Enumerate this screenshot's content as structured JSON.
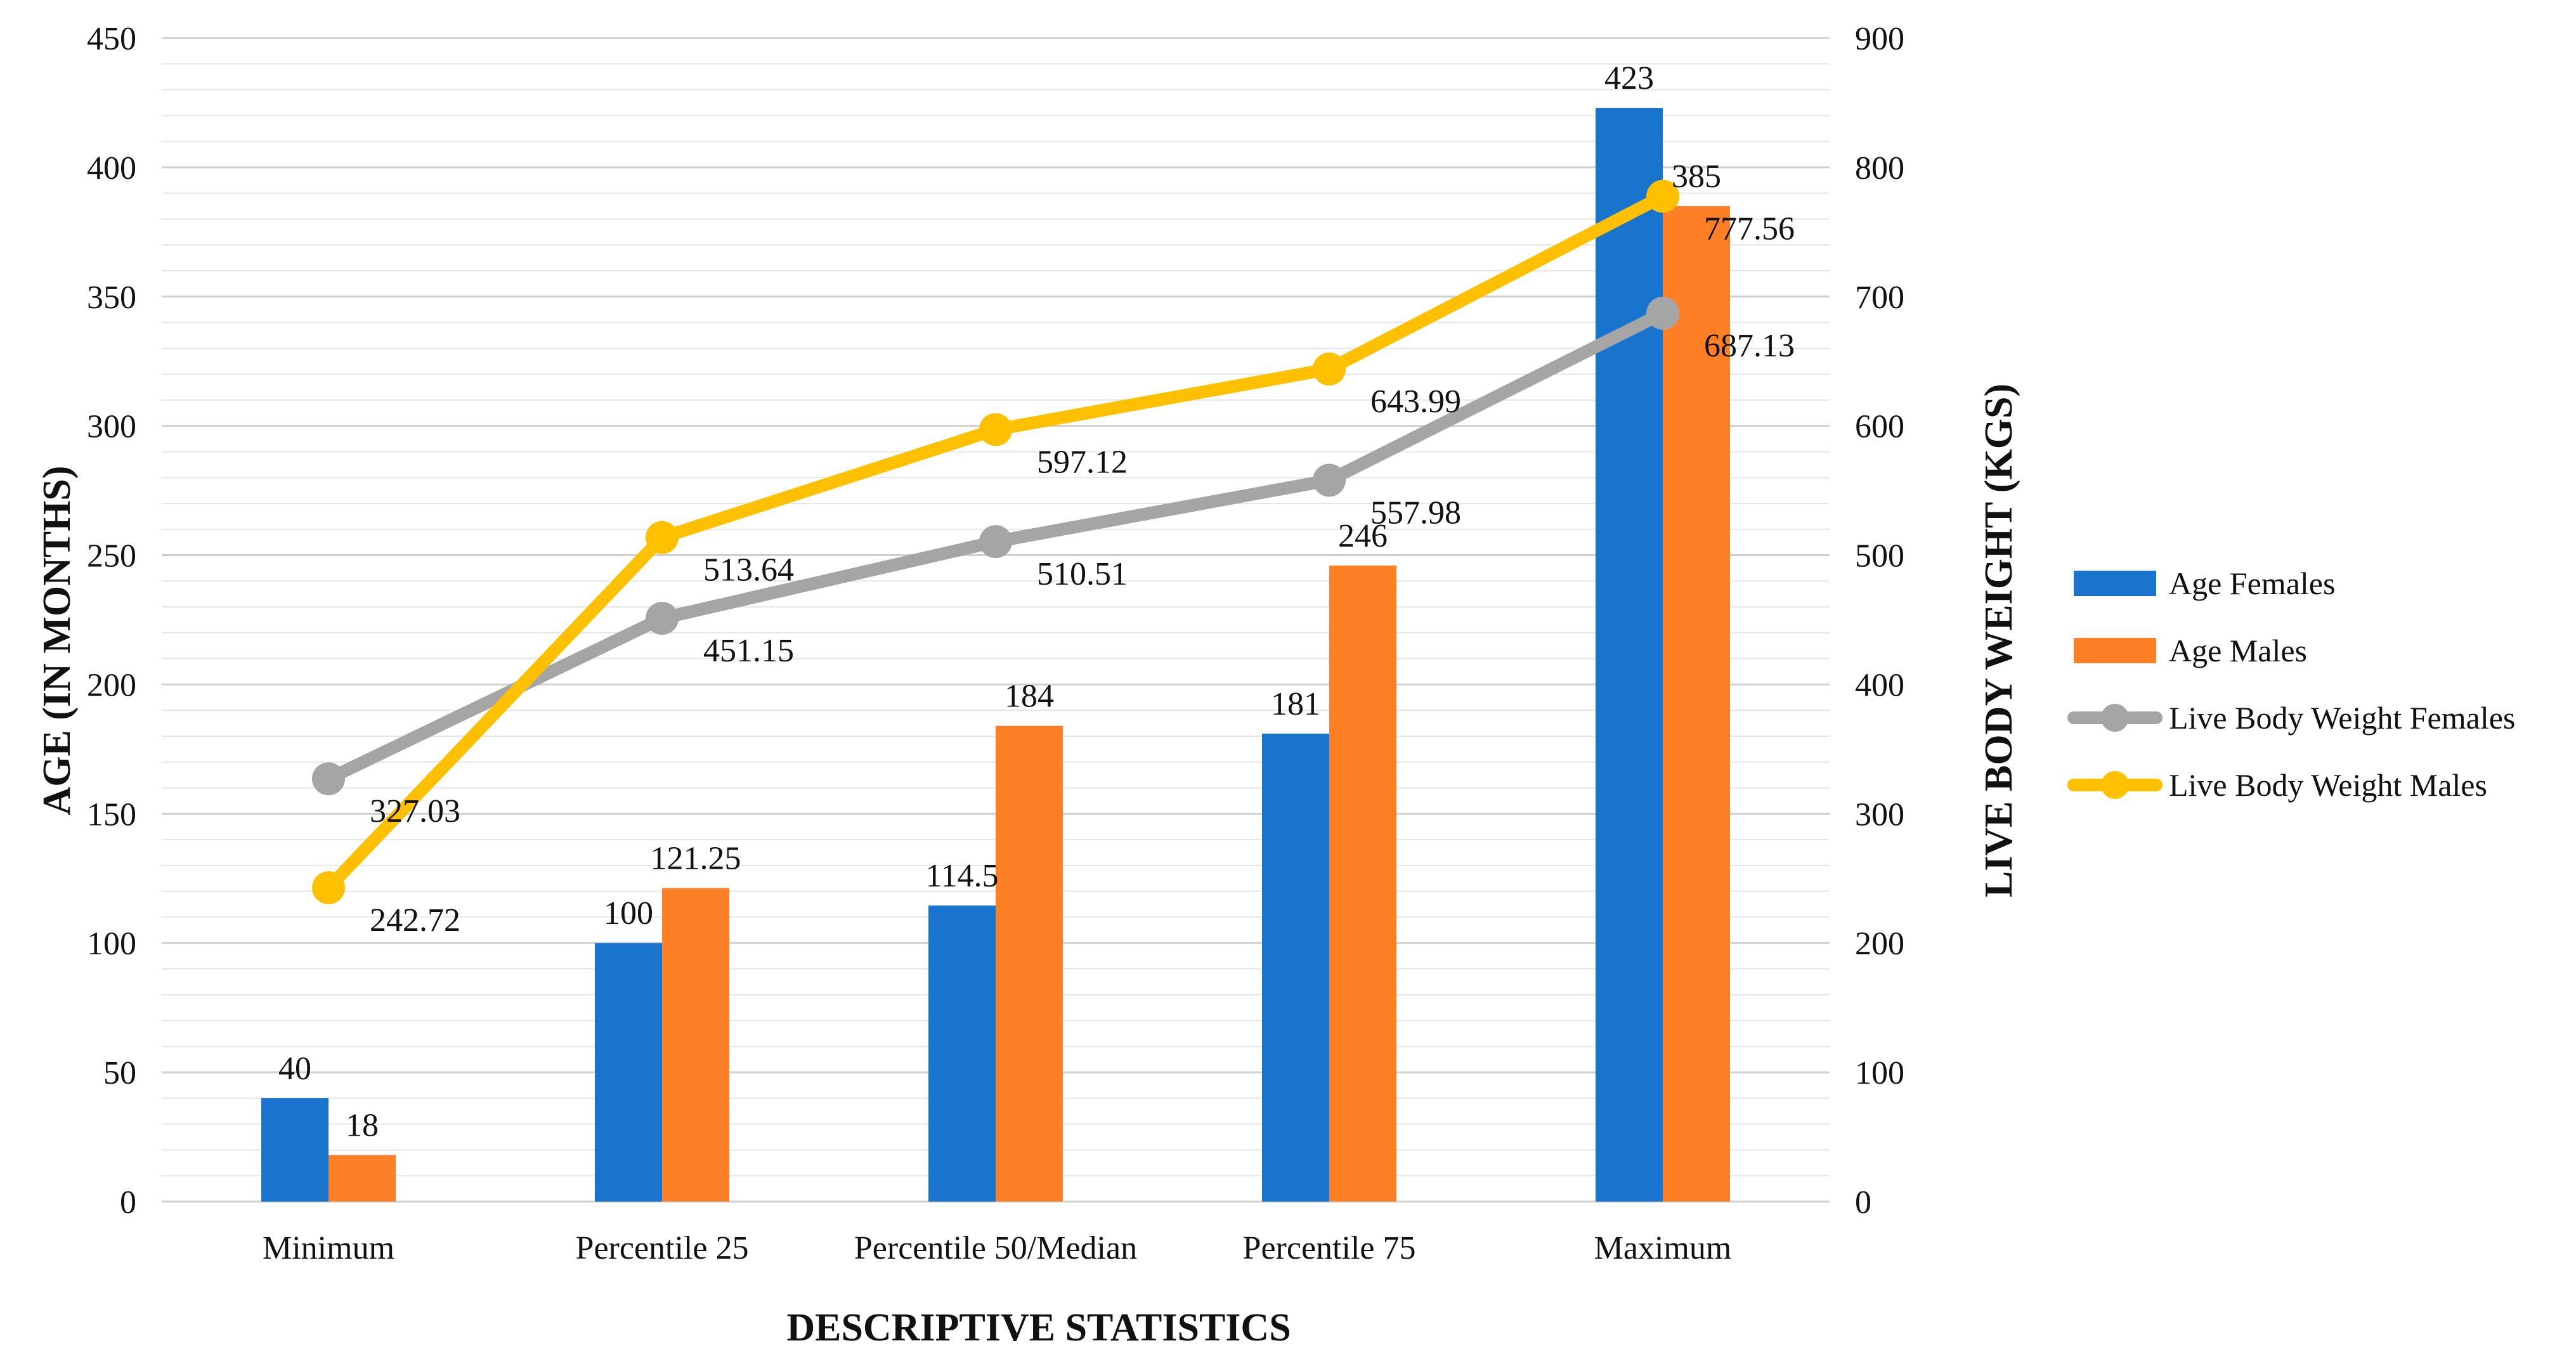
{
  "chart_data": {
    "type": "bar",
    "categories": [
      "Minimum",
      "Percentile 25",
      "Percentile 50/Median",
      "Percentile 75",
      "Maximum"
    ],
    "series": [
      {
        "name": "Age Females",
        "kind": "bar",
        "axis": "left",
        "color": "#1874CD",
        "values": [
          40,
          100,
          114.5,
          181,
          423
        ],
        "labels": [
          "40",
          "100",
          "114.5",
          "181",
          "423"
        ]
      },
      {
        "name": "Age Males",
        "kind": "bar",
        "axis": "left",
        "color": "#FF7F27",
        "values": [
          18,
          121.25,
          184,
          246,
          385
        ],
        "labels": [
          "18",
          "121.25",
          "184",
          "246",
          "385"
        ]
      },
      {
        "name": "Live Body Weight Females",
        "kind": "line",
        "axis": "right",
        "color": "#A5A5A5",
        "values": [
          327.03,
          451.15,
          510.51,
          557.98,
          687.13
        ],
        "labels": [
          "327.03",
          "451.15",
          "510.51",
          "557.98",
          "687.13"
        ]
      },
      {
        "name": "Live Body Weight Males",
        "kind": "line",
        "axis": "right",
        "color": "#FFC000",
        "values": [
          242.72,
          513.64,
          597.12,
          643.99,
          777.56
        ],
        "labels": [
          "242.72",
          "513.64",
          "597.12",
          "643.99",
          "777.56"
        ]
      }
    ],
    "xlabel": "DESCRIPTIVE STATISTICS",
    "ylabel": "AGE (IN MONTHS)",
    "y2label": "LIVE BODY WEIGHT (KGS)",
    "ylim": [
      0,
      450
    ],
    "yticks": [
      0,
      50,
      100,
      150,
      200,
      250,
      300,
      350,
      400,
      450
    ],
    "y2lim": [
      0,
      900
    ],
    "y2ticks": [
      0,
      100,
      200,
      300,
      400,
      500,
      600,
      700,
      800,
      900
    ],
    "grid": true,
    "legend_position": "right"
  }
}
